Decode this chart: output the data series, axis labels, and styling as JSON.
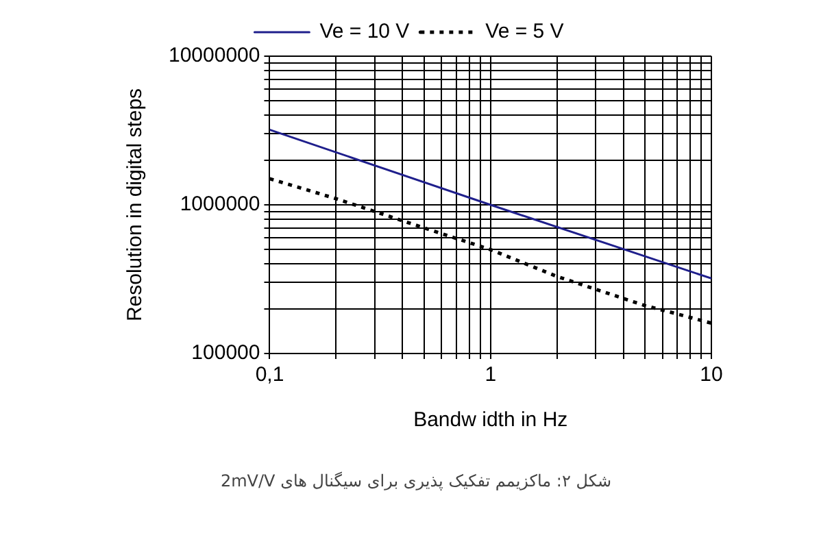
{
  "chart_data": {
    "type": "line",
    "xlabel": "Bandw idth in Hz",
    "ylabel": "Resolution in digital steps",
    "log": "xy",
    "grid": true,
    "legend": "top",
    "marker": "none",
    "xlim": [
      0.1,
      10
    ],
    "ylim": [
      100000,
      10000000
    ],
    "xticks": [
      {
        "value": 0.1,
        "label": "0,1"
      },
      {
        "value": 0.2,
        "label": null
      },
      {
        "value": 0.3,
        "label": null
      },
      {
        "value": 0.4,
        "label": null
      },
      {
        "value": 0.5,
        "label": null
      },
      {
        "value": 0.6,
        "label": null
      },
      {
        "value": 0.7,
        "label": null
      },
      {
        "value": 0.8,
        "label": null
      },
      {
        "value": 0.9,
        "label": null
      },
      1,
      {
        "value": 2,
        "label": null
      },
      {
        "value": 3,
        "label": null
      },
      {
        "value": 4,
        "label": null
      },
      {
        "value": 5,
        "label": null
      },
      {
        "value": 6,
        "label": null
      },
      {
        "value": 7,
        "label": null
      },
      {
        "value": 8,
        "label": null
      },
      {
        "value": 9,
        "label": null
      },
      10
    ],
    "yticks": [
      100000,
      {
        "value": 200000,
        "label": null
      },
      {
        "value": 300000,
        "label": null
      },
      {
        "value": 400000,
        "label": null
      },
      {
        "value": 500000,
        "label": null
      },
      {
        "value": 600000,
        "label": null
      },
      {
        "value": 700000,
        "label": null
      },
      {
        "value": 800000,
        "label": null
      },
      {
        "value": 900000,
        "label": null
      },
      1000000,
      {
        "value": 2000000,
        "label": null
      },
      {
        "value": 3000000,
        "label": null
      },
      {
        "value": 4000000,
        "label": null
      },
      {
        "value": 5000000,
        "label": null
      },
      {
        "value": 6000000,
        "label": null
      },
      {
        "value": 7000000,
        "label": null
      },
      {
        "value": 8000000,
        "label": null
      },
      {
        "value": 9000000,
        "label": null
      },
      10000000
    ],
    "series": [
      {
        "name": "Ve = 10 V",
        "color": "#1f1f8c",
        "line_style": "solid",
        "x": [
          0.1,
          1,
          10
        ],
        "values": [
          3200000,
          1000000,
          320000
        ]
      },
      {
        "name": "Ve = 5 V",
        "color": "#000000",
        "line_style": "dotted",
        "x": [
          0.1,
          0.2,
          0.5,
          1,
          2,
          5,
          6.5,
          10
        ],
        "values": [
          1500000,
          1100000,
          700000,
          500000,
          330000,
          210000,
          190000,
          160000
        ]
      }
    ],
    "annotations": [
      "شکل ۲: ماکزیمم تفکیک پذیری برای سیگنال های 2mV/V"
    ]
  }
}
